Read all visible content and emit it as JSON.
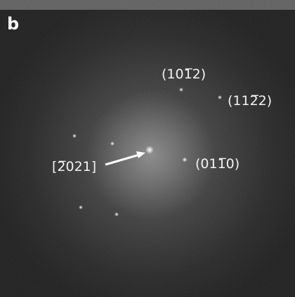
{
  "panel_label": "b",
  "labels": [
    "(101̅2)",
    "(112̅2)",
    "[2̅021]",
    "(011̅0)"
  ]
}
